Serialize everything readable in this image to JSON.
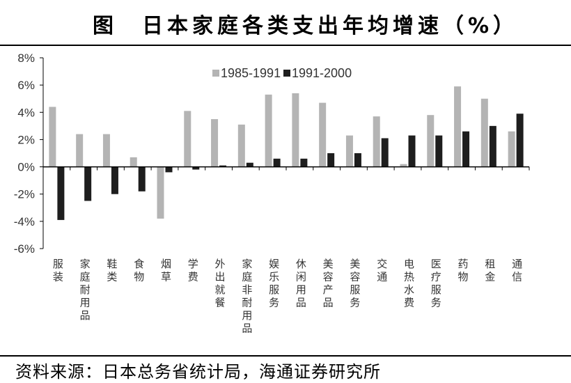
{
  "title": {
    "figure_label": "图",
    "text": "日本家庭各类支出年均增速（%）"
  },
  "source": "资料来源：日本总务省统计局，海通证券研究所",
  "colors": {
    "series_1985_1991": "#b4b4b4",
    "series_1991_2000": "#1e1e1e",
    "axis": "#000000"
  },
  "chart_data": {
    "type": "bar",
    "title": "日本家庭各类支出年均增速（%）",
    "xlabel": "",
    "ylabel": "",
    "ylim": [
      -6,
      8
    ],
    "yticks": [
      8,
      6,
      4,
      2,
      0,
      -2,
      -4,
      -6
    ],
    "ytick_labels": [
      "8%",
      "6%",
      "4%",
      "2%",
      "0%",
      "-2%",
      "-4%",
      "-6%"
    ],
    "grid": false,
    "legend_position": "top",
    "categories": [
      "服装",
      "家庭耐用品",
      "鞋类",
      "食物",
      "烟草",
      "学费",
      "外出就餐",
      "家庭非耐用品",
      "娱乐服务",
      "休闲用品",
      "美容产品",
      "美容服务",
      "交通",
      "电热水费",
      "医疗服务",
      "药物",
      "租金",
      "通信"
    ],
    "series": [
      {
        "name": "1985-1991",
        "values": [
          4.4,
          2.4,
          2.4,
          0.7,
          -3.8,
          4.1,
          3.5,
          3.1,
          5.3,
          5.4,
          4.7,
          2.3,
          3.7,
          0.2,
          3.8,
          5.9,
          5.0,
          2.6
        ]
      },
      {
        "name": "1991-2000",
        "values": [
          -3.9,
          -2.5,
          -2.0,
          -1.8,
          -0.4,
          -0.2,
          0.1,
          0.3,
          0.6,
          0.6,
          1.0,
          1.0,
          2.1,
          2.3,
          2.3,
          2.6,
          3.0,
          3.9
        ]
      }
    ]
  }
}
